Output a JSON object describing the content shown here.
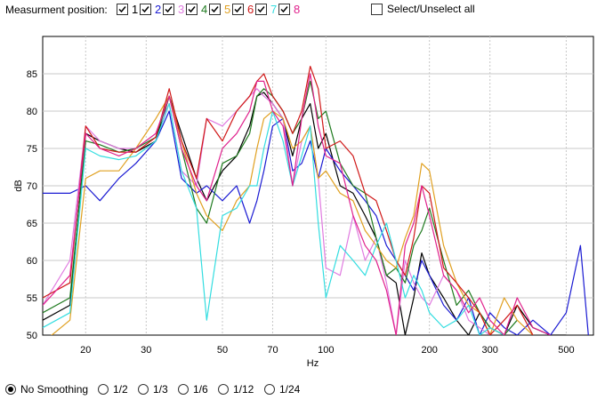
{
  "topbar": {
    "label": "Measurment position:",
    "positions": [
      {
        "label": "1",
        "checked": true,
        "color": "#000000"
      },
      {
        "label": "2",
        "checked": true,
        "color": "#1a1ad2"
      },
      {
        "label": "3",
        "checked": true,
        "color": "#e07be0"
      },
      {
        "label": "4",
        "checked": true,
        "color": "#1e7a1e"
      },
      {
        "label": "5",
        "checked": true,
        "color": "#e0a020"
      },
      {
        "label": "6",
        "checked": true,
        "color": "#d01818"
      },
      {
        "label": "7",
        "checked": true,
        "color": "#33dde0"
      },
      {
        "label": "8",
        "checked": true,
        "color": "#e0208c"
      }
    ],
    "select_all": {
      "label": "Select/Unselect all",
      "checked": false
    }
  },
  "smoothing": {
    "options": [
      "No Smoothing",
      "1/2",
      "1/3",
      "1/6",
      "1/12",
      "1/24"
    ],
    "selected": 0
  },
  "chart_data": {
    "type": "line",
    "xlabel": "Hz",
    "ylabel": "dB",
    "x_scale": "log",
    "xlim": [
      15,
      600
    ],
    "ylim": [
      50,
      90
    ],
    "x_ticks": [
      20,
      30,
      50,
      70,
      100,
      200,
      300,
      500
    ],
    "y_ticks": [
      50,
      55,
      60,
      65,
      70,
      75,
      80,
      85
    ],
    "grid": true,
    "series": [
      {
        "name": "1",
        "color": "#000000",
        "x": [
          15,
          18,
          20,
          22,
          25,
          28,
          32,
          35,
          38,
          42,
          45,
          50,
          55,
          60,
          63,
          66,
          70,
          75,
          80,
          85,
          90,
          95,
          100,
          110,
          120,
          130,
          140,
          150,
          160,
          170,
          180,
          190,
          200,
          220,
          240,
          260,
          280,
          300,
          330,
          360,
          400,
          450,
          500
        ],
        "y": [
          52,
          54,
          77,
          76,
          75,
          74.5,
          76,
          82,
          77,
          71,
          68,
          72,
          74,
          78,
          82,
          82.5,
          81,
          79,
          74,
          79,
          81,
          75,
          77,
          70,
          69,
          66,
          63,
          58,
          57,
          50,
          55,
          61,
          58,
          55,
          52,
          50,
          53,
          51,
          50,
          54,
          51,
          50,
          50
        ]
      },
      {
        "name": "2",
        "color": "#1a1ad2",
        "x": [
          15,
          18,
          20,
          22,
          25,
          28,
          32,
          35,
          38,
          42,
          45,
          50,
          55,
          60,
          63,
          66,
          70,
          75,
          80,
          85,
          90,
          95,
          100,
          110,
          120,
          130,
          140,
          150,
          160,
          170,
          180,
          190,
          200,
          220,
          240,
          260,
          280,
          300,
          330,
          360,
          400,
          450,
          500,
          550,
          580
        ],
        "y": [
          69,
          69,
          70,
          68,
          71,
          73,
          76,
          80,
          71,
          69,
          70,
          68,
          70,
          65,
          68,
          72,
          78,
          79,
          72,
          73,
          76,
          71,
          75,
          72,
          70,
          68,
          66,
          62,
          60,
          58,
          56,
          60,
          58,
          54,
          52,
          55,
          50,
          53,
          51,
          50,
          52,
          50,
          53,
          62,
          50
        ]
      },
      {
        "name": "3",
        "color": "#e07be0",
        "x": [
          15,
          18,
          20,
          22,
          25,
          28,
          32,
          35,
          38,
          42,
          45,
          50,
          55,
          60,
          63,
          66,
          70,
          75,
          80,
          85,
          90,
          95,
          100,
          110,
          120,
          130,
          140,
          150,
          160,
          170,
          180,
          190,
          200,
          220,
          240,
          260,
          280,
          300
        ],
        "y": [
          54,
          60,
          78,
          76,
          75,
          75,
          77,
          81,
          72,
          70,
          79,
          78,
          80,
          82,
          83,
          82,
          81,
          79,
          70,
          76,
          78,
          71,
          59,
          58,
          66,
          60,
          63,
          57,
          50,
          60,
          57,
          55,
          54,
          58,
          56,
          52,
          51,
          50
        ]
      },
      {
        "name": "4",
        "color": "#1e7a1e",
        "x": [
          15,
          18,
          20,
          22,
          25,
          28,
          32,
          35,
          38,
          42,
          45,
          50,
          55,
          60,
          63,
          66,
          70,
          75,
          80,
          85,
          90,
          95,
          100,
          110,
          120,
          130,
          140,
          150,
          160,
          170,
          180,
          190,
          200,
          220,
          240,
          260,
          280,
          300,
          330,
          360
        ],
        "y": [
          53,
          55,
          76,
          75.5,
          74.5,
          75,
          76.5,
          82,
          75,
          67,
          65,
          73,
          74,
          77,
          82,
          83,
          82,
          80,
          77,
          79,
          84,
          79,
          80,
          73,
          70,
          69,
          63,
          58,
          59,
          57,
          62,
          64,
          67,
          60,
          54,
          56,
          53,
          51,
          50,
          52
        ]
      },
      {
        "name": "5",
        "color": "#e0a020",
        "x": [
          15,
          18,
          20,
          22,
          25,
          28,
          32,
          35,
          38,
          42,
          45,
          50,
          55,
          60,
          63,
          66,
          70,
          75,
          80,
          85,
          90,
          95,
          100,
          110,
          120,
          130,
          140,
          150,
          160,
          170,
          180,
          190,
          200,
          220,
          240,
          260,
          280,
          300,
          330,
          360,
          400
        ],
        "y": [
          49,
          52,
          71,
          72,
          72,
          75,
          79,
          82,
          76,
          69,
          66,
          64,
          68,
          70,
          75,
          79,
          80,
          79,
          75,
          76,
          78,
          71,
          72,
          69,
          68,
          64,
          62,
          60,
          59,
          63,
          66,
          73,
          72,
          62,
          57,
          54,
          53,
          50,
          55,
          52,
          50
        ]
      },
      {
        "name": "6",
        "color": "#d01818",
        "x": [
          15,
          18,
          20,
          22,
          25,
          28,
          32,
          35,
          38,
          42,
          45,
          50,
          55,
          60,
          63,
          66,
          70,
          75,
          80,
          85,
          90,
          95,
          100,
          110,
          120,
          130,
          140,
          150,
          160,
          170,
          180,
          190,
          200,
          220,
          240,
          260,
          280,
          300,
          330,
          360,
          400
        ],
        "y": [
          55,
          57,
          78,
          75,
          74.5,
          74.5,
          76.5,
          83,
          76,
          71,
          79,
          76,
          80,
          82,
          84,
          85,
          82,
          80,
          77,
          80,
          86,
          83,
          75,
          76,
          74,
          69,
          68,
          64,
          60,
          58,
          63,
          70,
          69,
          59,
          57,
          55,
          53,
          50,
          52,
          54,
          50
        ]
      },
      {
        "name": "7",
        "color": "#33dde0",
        "x": [
          15,
          18,
          20,
          22,
          25,
          28,
          32,
          35,
          38,
          42,
          45,
          50,
          55,
          60,
          63,
          66,
          70,
          75,
          80,
          85,
          90,
          95,
          100,
          110,
          120,
          130,
          140,
          150,
          160,
          170,
          180,
          190,
          200,
          220,
          240,
          260,
          280,
          300,
          330
        ],
        "y": [
          51,
          53,
          75,
          74,
          73.5,
          74,
          76,
          81,
          72,
          67,
          52,
          66,
          67,
          70,
          70,
          75,
          80,
          76,
          70,
          74,
          78,
          65,
          55,
          62,
          60,
          58,
          62,
          65,
          60,
          55,
          58,
          56,
          53,
          51,
          52,
          54,
          50,
          51,
          50
        ]
      },
      {
        "name": "8",
        "color": "#e0208c",
        "x": [
          15,
          18,
          20,
          22,
          25,
          28,
          32,
          35,
          38,
          42,
          45,
          50,
          55,
          60,
          63,
          66,
          70,
          75,
          80,
          85,
          90,
          95,
          100,
          110,
          120,
          130,
          140,
          150,
          160,
          170,
          180,
          190,
          200,
          220,
          240,
          260,
          280,
          300,
          330,
          360,
          400,
          450
        ],
        "y": [
          54,
          58,
          77,
          75,
          74,
          75,
          77,
          82,
          75,
          70,
          68,
          75,
          77,
          80,
          84,
          84,
          80,
          78,
          70,
          79,
          85,
          78,
          74,
          73,
          66,
          62,
          60,
          56,
          50,
          62,
          65,
          70,
          66,
          58,
          56,
          53,
          55,
          52,
          50,
          55,
          51,
          50
        ]
      }
    ]
  }
}
